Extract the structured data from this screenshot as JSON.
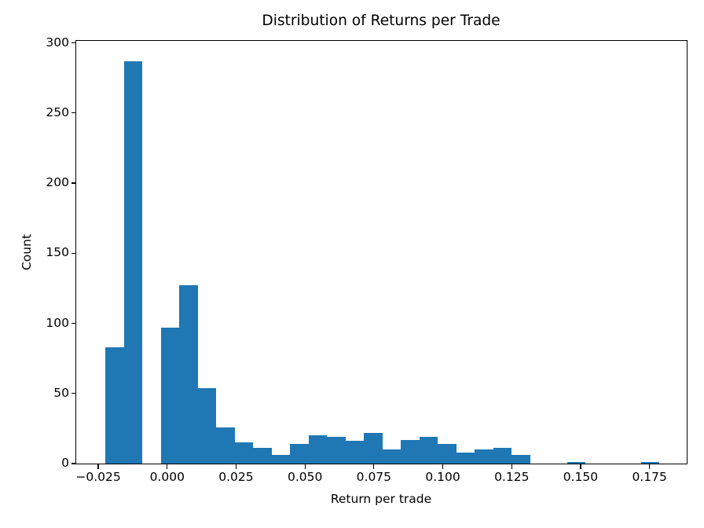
{
  "chart_data": {
    "type": "bar",
    "subtype": "histogram",
    "title": "Distribution of Returns per Trade",
    "xlabel": "Return per trade",
    "ylabel": "Count",
    "bar_color": "#1f77b4",
    "axis_color": "#000000",
    "background_color": "#ffffff",
    "grid": false,
    "legend": false,
    "bin_start": -0.0224,
    "bin_width": 0.0067,
    "counts": [
      83,
      287,
      0,
      97,
      127,
      54,
      26,
      15,
      11,
      6,
      14,
      20,
      19,
      16,
      22,
      10,
      17,
      19,
      14,
      8,
      10,
      11,
      6,
      0,
      0,
      1,
      0,
      0,
      0,
      1
    ],
    "xlim": [
      -0.033,
      0.1885
    ],
    "ylim": [
      0,
      301.4
    ],
    "xticks": [
      -0.025,
      0.0,
      0.025,
      0.05,
      0.075,
      0.1,
      0.125,
      0.15,
      0.175
    ],
    "xtick_labels": [
      "−0.025",
      "0.000",
      "0.025",
      "0.050",
      "0.075",
      "0.100",
      "0.125",
      "0.150",
      "0.175"
    ],
    "yticks": [
      0,
      50,
      100,
      150,
      200,
      250,
      300
    ],
    "ytick_labels": [
      "0",
      "50",
      "100",
      "150",
      "200",
      "250",
      "300"
    ]
  }
}
